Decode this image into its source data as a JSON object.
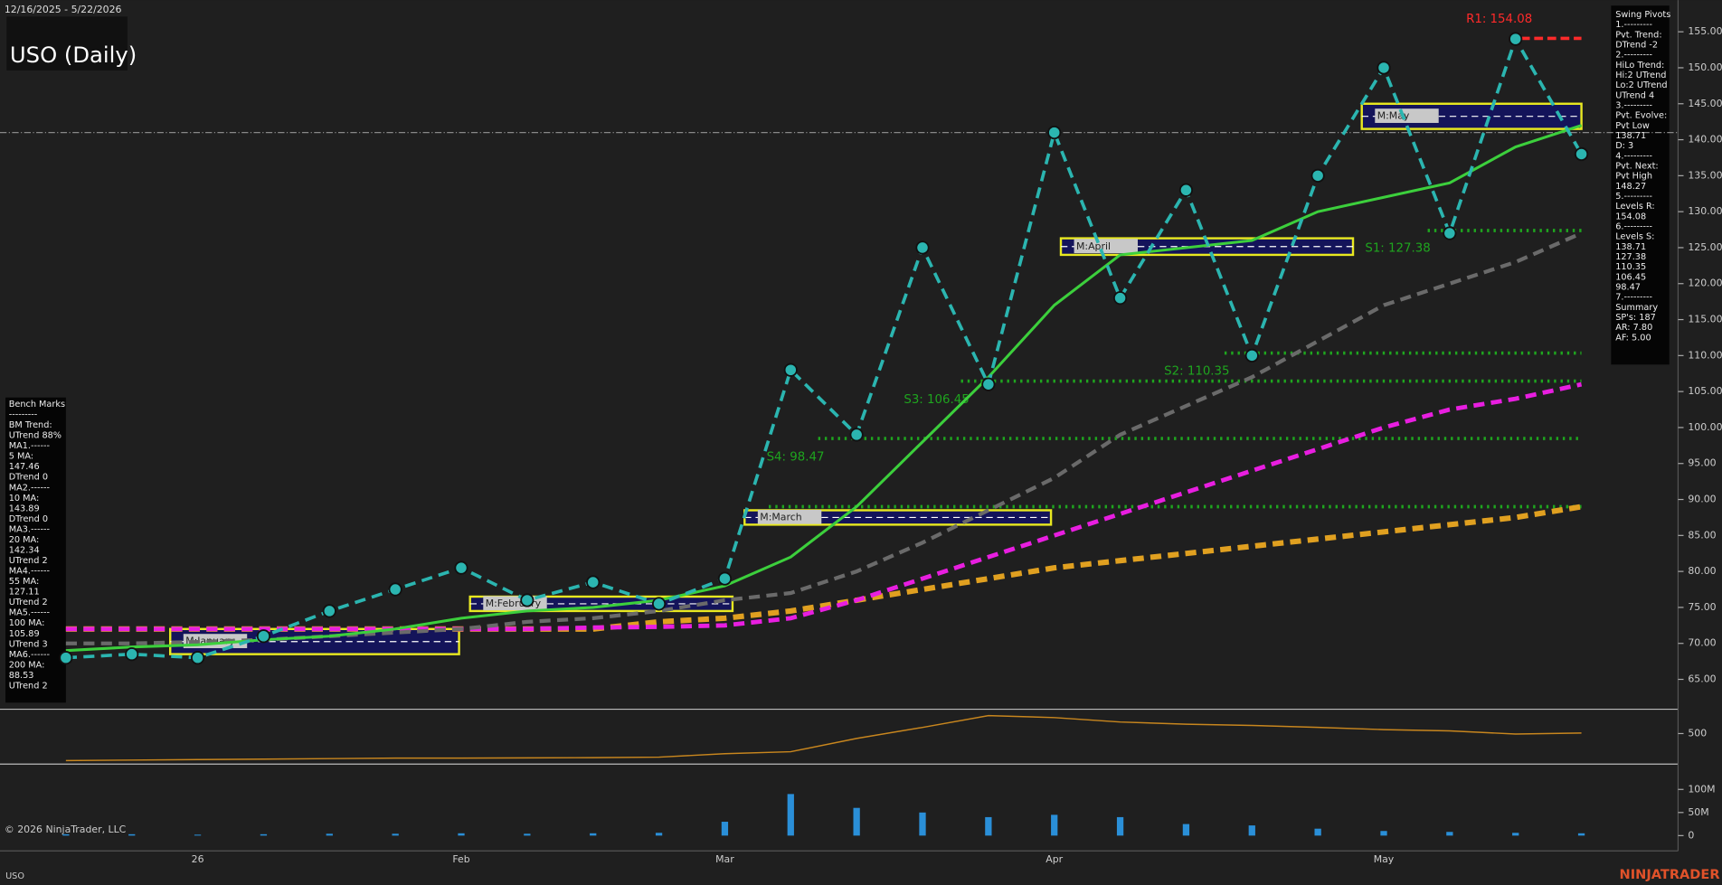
{
  "chart_data": [
    {
      "type": "line",
      "title": "USO (Daily)",
      "subtitle": "12/16/2025 - 5/22/2026",
      "categories": [
        null,
        null,
        "26",
        null,
        null,
        null,
        "Feb",
        null,
        null,
        null,
        "Mar",
        null,
        null,
        null,
        null,
        "Apr",
        null,
        null,
        null,
        null,
        "May",
        null,
        null,
        null
      ],
      "ylim": [
        61,
        159.4
      ],
      "yticks": [
        {
          "value": 65,
          "label": "65.00"
        },
        {
          "value": 70,
          "label": "70.00"
        },
        {
          "value": 75,
          "label": "75.00"
        },
        {
          "value": 80,
          "label": "80.00"
        },
        {
          "value": 85,
          "label": "85.00"
        },
        {
          "value": 90,
          "label": "90.00"
        },
        {
          "value": 95,
          "label": "95.00"
        },
        {
          "value": 100,
          "label": "100.00"
        },
        {
          "value": 105,
          "label": "105.00"
        },
        {
          "value": 110,
          "label": "110.00"
        },
        {
          "value": 115,
          "label": "115.00"
        },
        {
          "value": 120,
          "label": "120.00"
        },
        {
          "value": 125,
          "label": "125.00"
        },
        {
          "value": 130,
          "label": "130.00"
        },
        {
          "value": 135,
          "label": "135.00"
        },
        {
          "value": 140,
          "label": "140.00"
        },
        {
          "value": 145,
          "label": "145.00"
        },
        {
          "value": 150,
          "label": "150.00"
        },
        {
          "value": 155,
          "label": "155.00"
        }
      ],
      "series": [
        {
          "color": "#2bb5b0",
          "dash": true,
          "width": 3,
          "values": [
            68,
            68.5,
            68,
            71,
            74.5,
            77.5,
            80.5,
            76,
            78.5,
            75.5,
            79,
            108,
            99,
            125,
            106,
            141,
            118,
            133,
            110,
            135,
            150,
            127,
            154,
            138
          ]
        },
        {
          "color": "#3ccf3c",
          "dash": false,
          "width": 2.5,
          "values": [
            69,
            69.5,
            69.8,
            70.5,
            71,
            72,
            73.5,
            74.5,
            75,
            76,
            78,
            82,
            89,
            98,
            107,
            117,
            124,
            125,
            126,
            130,
            132,
            134,
            139,
            142
          ]
        },
        {
          "color": "#6a6a6a",
          "dash": true,
          "width": 3.5,
          "values": [
            70,
            70,
            70.2,
            70.5,
            71,
            71.5,
            72,
            73,
            73.5,
            74.5,
            76,
            77,
            80,
            84,
            88.5,
            93,
            99,
            103,
            107,
            112,
            117,
            120,
            123,
            127
          ]
        },
        {
          "color": "#e81ee0",
          "dash": true,
          "width": 4,
          "values": [
            72,
            72,
            72,
            72,
            72,
            72,
            72,
            72,
            72.2,
            72.3,
            72.5,
            73.5,
            76,
            79,
            82,
            85,
            88,
            91,
            94,
            97,
            100,
            102.5,
            104,
            106
          ]
        },
        {
          "color": "#e0a020",
          "dash": true,
          "width": 5,
          "values": [
            72,
            72,
            72,
            72,
            72,
            72,
            72,
            72,
            72,
            73,
            73.5,
            74.5,
            76,
            77.5,
            79,
            80.5,
            81.5,
            82.5,
            83.5,
            84.5,
            85.5,
            86.5,
            87.5,
            89
          ]
        }
      ],
      "levels": [
        {
          "label": "R1: 154.08",
          "value": 154.08,
          "color": "#ff2a2a"
        },
        {
          "label": "S1: 127.38",
          "value": 127.38,
          "color": "#1fa51f"
        },
        {
          "label": "S2: 110.35",
          "value": 110.35,
          "color": "#1fa51f"
        },
        {
          "label": "S3: 106.45",
          "value": 106.45,
          "color": "#1fa51f"
        },
        {
          "label": "S4: 98.47",
          "value": 98.47,
          "color": "#1fa51f"
        },
        {
          "value": 89,
          "color": "#1fa51f"
        }
      ],
      "reference_line": 141,
      "monthly_boxes": [
        {
          "label": "M:January",
          "low": 68.5,
          "high": 72
        },
        {
          "label": "M:February",
          "low": 74.5,
          "high": 76.5
        },
        {
          "label": "M:March",
          "low": 86.5,
          "high": 88.5
        },
        {
          "label": "M:April",
          "low": 124,
          "high": 126.3
        },
        {
          "label": "M:May",
          "low": 141.5,
          "high": 145
        }
      ]
    },
    {
      "type": "line",
      "color": "#c8861e",
      "ylim": [
        380,
        590
      ],
      "yticks": [
        500
      ],
      "values": [
        390,
        392,
        394,
        396,
        398,
        400,
        400,
        401,
        402,
        404,
        418,
        426,
        480,
        525,
        573,
        565,
        547,
        538,
        533,
        525,
        516,
        511,
        498,
        502
      ]
    },
    {
      "type": "bar",
      "color": "#2a8fd8",
      "ylim": [
        -33000000,
        150000000
      ],
      "yticks": [
        0,
        {
          "value": 50000000,
          "label": "50M"
        },
        {
          "value": 100000000,
          "label": "100M"
        }
      ],
      "values": [
        3000000,
        3000000,
        2000000,
        3000000,
        4000000,
        4000000,
        5000000,
        4000000,
        5000000,
        6000000,
        30000000,
        90000000,
        60000000,
        50000000,
        40000000,
        45000000,
        40000000,
        25000000,
        22000000,
        15000000,
        10000000,
        8000000,
        6000000,
        5000000
      ]
    }
  ],
  "panels": {
    "swing_pivots": [
      "Swing Pivots",
      "1.---------",
      "Pvt. Trend:",
      "DTrend -2",
      "2.---------",
      "HiLo Trend:",
      "Hi:2 UTrend",
      "Lo:2 UTrend",
      "UTrend 4",
      "3.---------",
      "Pvt. Evolve:",
      "Pvt Low",
      "138.71",
      "D: 3",
      "4.---------",
      "Pvt. Next:",
      "Pvt High",
      "148.27",
      "5.---------",
      "Levels R:",
      "154.08",
      "6.---------",
      "Levels S:",
      "138.71",
      "127.38",
      "110.35",
      "106.45",
      "98.47",
      "7.---------",
      "Summary",
      "SP's: 187",
      "AR: 7.80",
      "AF: 5.00"
    ],
    "bench_marks": [
      "Bench Marks",
      "---------",
      "BM Trend:",
      "UTrend 88%",
      "MA1.------",
      "5 MA:",
      "147.46",
      "DTrend 0",
      "MA2.------",
      "10 MA:",
      "143.89",
      "DTrend 0",
      "MA3.------",
      "20 MA:",
      "142.34",
      "UTrend 2",
      "MA4.------",
      "55 MA:",
      "127.11",
      "UTrend 2",
      "MA5.------",
      "100 MA:",
      "105.89",
      "UTrend 3",
      "MA6.------",
      "200 MA:",
      "88.53",
      "UTrend 2"
    ]
  },
  "footer": {
    "copyright": "© 2026 NinjaTrader, LLC",
    "symbol": "USO",
    "brand": "NINJATRADER"
  }
}
